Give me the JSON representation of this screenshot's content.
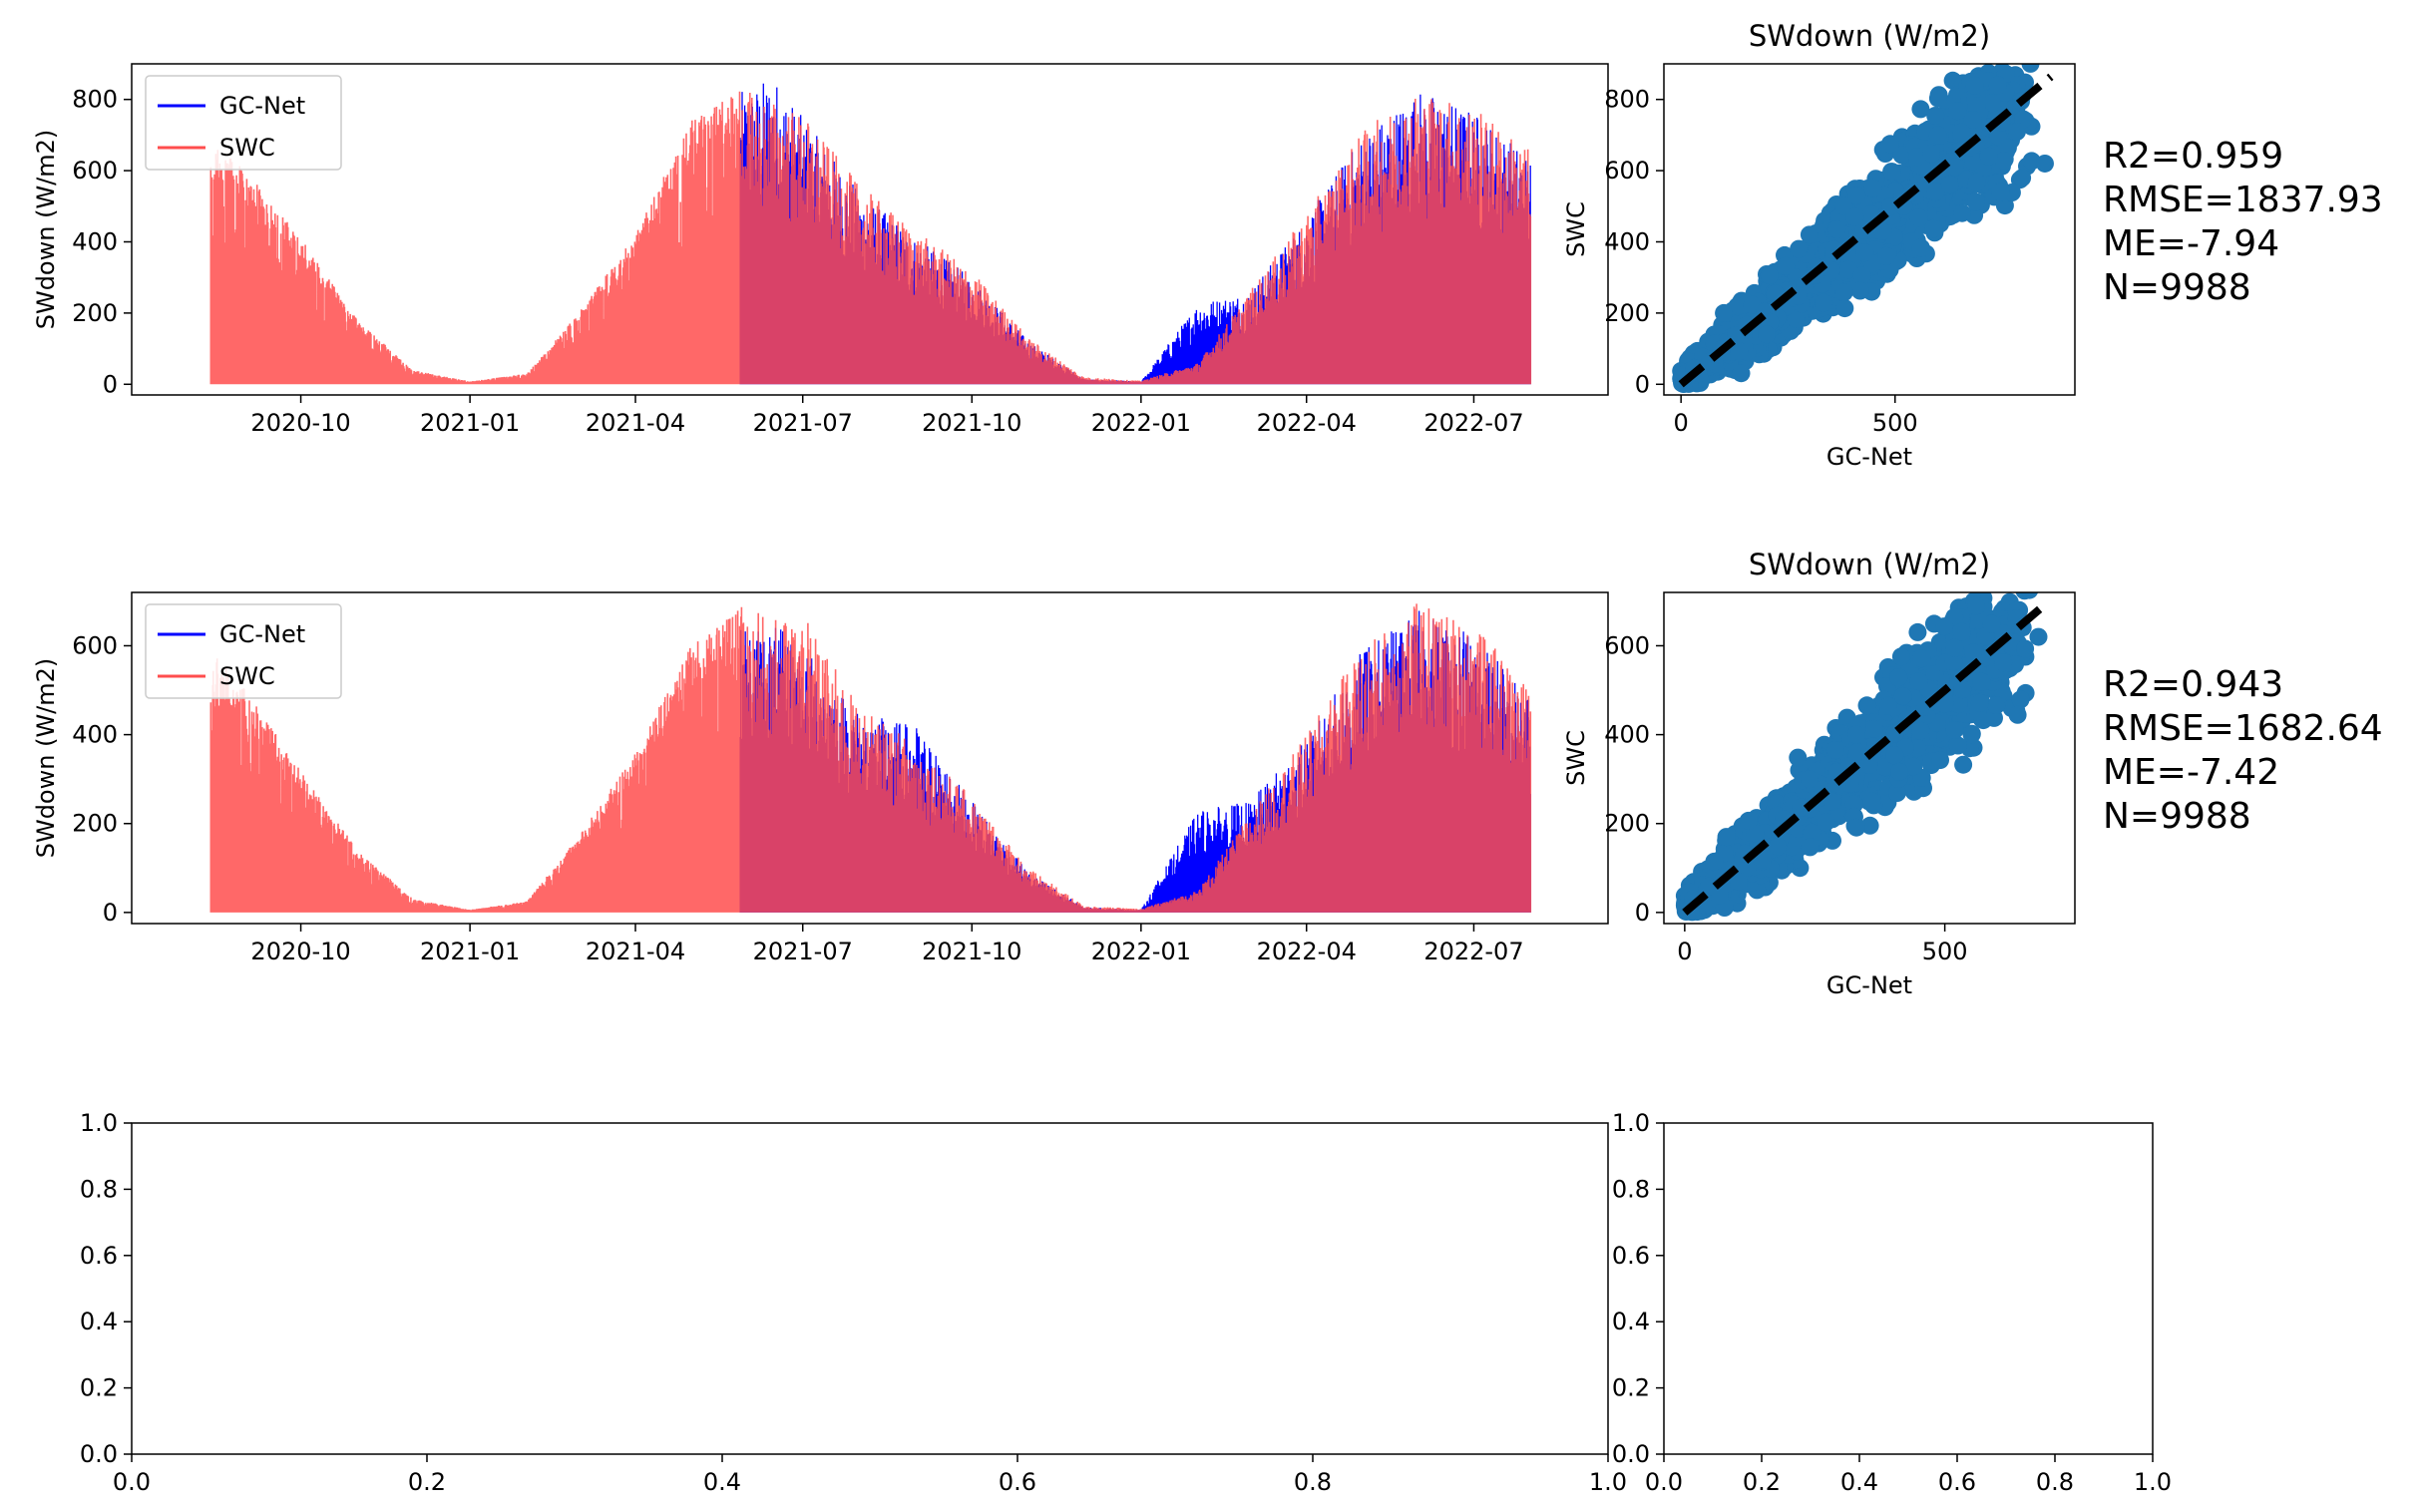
{
  "chart_data": [
    {
      "type": "line",
      "ylabel": "SWdown (W/m2)",
      "ylim": [
        -30,
        900
      ],
      "yticks": [
        0,
        200,
        400,
        600,
        800
      ],
      "x_range": [
        "2020-07-01",
        "2022-09-12"
      ],
      "xticks": [
        "2020-10",
        "2021-01",
        "2021-04",
        "2021-07",
        "2021-10",
        "2022-01",
        "2022-04",
        "2022-07"
      ],
      "legend": {
        "placement": "upper-left",
        "entries": [
          "GC-Net",
          "SWC"
        ]
      },
      "series": [
        {
          "name": "SWC",
          "color": "#ff4d4d",
          "x": [
            "2020-08-13",
            "2020-09-01",
            "2020-10-01",
            "2020-11-01",
            "2020-12-01",
            "2021-01-01",
            "2021-02-01",
            "2021-03-01",
            "2021-04-01",
            "2021-05-01",
            "2021-05-28",
            "2021-06-15",
            "2021-07-01",
            "2021-08-01",
            "2021-09-01",
            "2021-10-01",
            "2021-11-01",
            "2021-12-01",
            "2022-01-01",
            "2022-02-01",
            "2022-03-01",
            "2022-04-01",
            "2022-05-01",
            "2022-06-01",
            "2022-07-01",
            "2022-08-01"
          ],
          "values": [
            680,
            600,
            410,
            180,
            40,
            8,
            30,
            200,
            420,
            740,
            830,
            800,
            760,
            560,
            430,
            320,
            130,
            20,
            10,
            60,
            260,
            480,
            710,
            830,
            780,
            660
          ]
        },
        {
          "name": "GC-Net",
          "color": "#0000ff",
          "x": [
            "2021-05-28",
            "2021-06-15",
            "2021-07-01",
            "2021-08-01",
            "2021-09-01",
            "2021-10-01",
            "2021-11-01",
            "2021-12-01",
            "2022-01-01",
            "2022-02-01",
            "2022-03-01",
            "2022-04-01",
            "2022-05-01",
            "2022-06-01",
            "2022-07-01",
            "2022-08-01"
          ],
          "values": [
            820,
            870,
            750,
            540,
            410,
            300,
            120,
            15,
            8,
            230,
            260,
            470,
            700,
            830,
            770,
            640
          ]
        }
      ]
    },
    {
      "type": "scatter",
      "title": "SWdown (W/m2)",
      "xlabel": "GC-Net",
      "ylabel": "SWC",
      "xlim": [
        -40,
        920
      ],
      "ylim": [
        -30,
        900
      ],
      "xticks": [
        0,
        500
      ],
      "yticks": [
        0,
        200,
        400,
        600,
        800
      ],
      "point_color": "#1f77b4",
      "reference_line": "1:1 dashed black",
      "sample_points": [
        [
          850,
          620
        ],
        [
          740,
          840
        ],
        [
          600,
          700
        ],
        [
          410,
          530
        ],
        [
          300,
          420
        ],
        [
          480,
          360
        ],
        [
          200,
          140
        ],
        [
          100,
          200
        ],
        [
          520,
          500
        ],
        [
          640,
          610
        ]
      ],
      "stats": [
        "R2=0.959",
        "RMSE=1837.93",
        "ME=-7.94",
        "N=9988"
      ]
    },
    {
      "type": "line",
      "ylabel": "SWdown (W/m2)",
      "ylim": [
        -25,
        720
      ],
      "yticks": [
        0,
        200,
        400,
        600
      ],
      "x_range": [
        "2020-07-01",
        "2022-09-12"
      ],
      "xticks": [
        "2020-10",
        "2021-01",
        "2021-04",
        "2021-07",
        "2021-10",
        "2022-01",
        "2022-04",
        "2022-07"
      ],
      "legend": {
        "placement": "upper-left",
        "entries": [
          "GC-Net",
          "SWC"
        ]
      },
      "series": [
        {
          "name": "SWC",
          "color": "#ff4d4d",
          "x": [
            "2020-08-13",
            "2020-09-01",
            "2020-10-01",
            "2020-11-01",
            "2020-12-01",
            "2021-01-01",
            "2021-02-01",
            "2021-03-01",
            "2021-04-01",
            "2021-05-01",
            "2021-05-28",
            "2021-06-15",
            "2021-07-01",
            "2021-08-01",
            "2021-09-01",
            "2021-10-01",
            "2021-11-01",
            "2021-12-01",
            "2022-01-01",
            "2022-02-01",
            "2022-03-01",
            "2022-04-01",
            "2022-05-01",
            "2022-06-01",
            "2022-07-01",
            "2022-08-01"
          ],
          "values": [
            590,
            500,
            320,
            140,
            30,
            6,
            25,
            170,
            360,
            600,
            690,
            660,
            670,
            460,
            380,
            260,
            100,
            15,
            8,
            50,
            220,
            400,
            600,
            700,
            650,
            500
          ]
        },
        {
          "name": "GC-Net",
          "color": "#0000ff",
          "x": [
            "2021-05-28",
            "2021-06-15",
            "2021-07-01",
            "2021-08-01",
            "2021-09-01",
            "2021-10-01",
            "2021-11-01",
            "2021-12-01",
            "2022-01-01",
            "2022-02-01",
            "2022-03-01",
            "2022-04-01",
            "2022-05-01",
            "2022-06-01",
            "2022-07-01",
            "2022-08-01"
          ],
          "values": [
            640,
            650,
            600,
            450,
            420,
            250,
            90,
            12,
            6,
            230,
            250,
            390,
            590,
            680,
            640,
            480
          ]
        }
      ]
    },
    {
      "type": "scatter",
      "title": "SWdown (W/m2)",
      "xlabel": "GC-Net",
      "ylabel": "SWC",
      "xlim": [
        -40,
        750
      ],
      "ylim": [
        -25,
        720
      ],
      "xticks": [
        0,
        500
      ],
      "yticks": [
        0,
        200,
        400,
        600
      ],
      "point_color": "#1f77b4",
      "reference_line": "1:1 dashed black",
      "sample_points": [
        [
          680,
          620
        ],
        [
          560,
          690
        ],
        [
          450,
          520
        ],
        [
          330,
          400
        ],
        [
          240,
          300
        ],
        [
          360,
          250
        ],
        [
          150,
          120
        ],
        [
          80,
          170
        ],
        [
          500,
          470
        ]
      ],
      "stats": [
        "R2=0.943",
        "RMSE=1682.64",
        "ME=-7.42",
        "N=9988"
      ]
    },
    {
      "type": "line",
      "xlim": [
        0,
        1
      ],
      "ylim": [
        0,
        1
      ],
      "xticks": [
        "0.0",
        "0.2",
        "0.4",
        "0.6",
        "0.8",
        "1.0"
      ],
      "yticks": [
        "0.0",
        "0.2",
        "0.4",
        "0.6",
        "0.8",
        "1.0"
      ],
      "series": []
    },
    {
      "type": "line",
      "xlim": [
        0,
        1
      ],
      "ylim": [
        0,
        1
      ],
      "xticks": [
        "0.0",
        "0.2",
        "0.4",
        "0.6",
        "0.8",
        "1.0"
      ],
      "yticks": [
        "0.0",
        "0.2",
        "0.4",
        "0.6",
        "0.8",
        "1.0"
      ],
      "series": []
    }
  ]
}
